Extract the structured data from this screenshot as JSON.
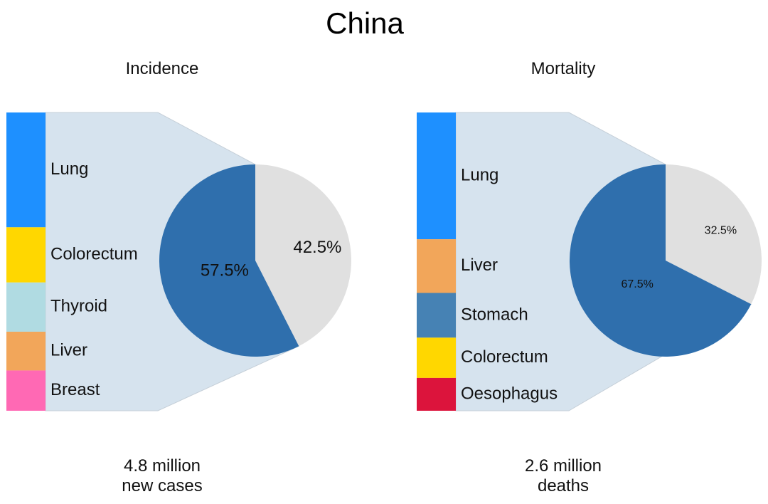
{
  "title": "China",
  "chart_data": [
    {
      "type": "pie",
      "subtitle": "Incidence",
      "caption": [
        "4.8 million",
        "new cases"
      ],
      "pie": {
        "slices": [
          {
            "label": "57.5%",
            "value": 57.5,
            "color": "#2f6fad"
          },
          {
            "label": "42.5%",
            "value": 42.5,
            "color": "#e0e0e0"
          }
        ],
        "breakdown_of_slice": 0
      },
      "bar_segments": [
        {
          "label": "Lung",
          "value": 38.5,
          "color": "#1e90ff"
        },
        {
          "label": "Colorectum",
          "value": 18.5,
          "color": "#ffd700"
        },
        {
          "label": "Thyroid",
          "value": 16.5,
          "color": "#b0dbe2"
        },
        {
          "label": "Liver",
          "value": 13.0,
          "color": "#f2a65a"
        },
        {
          "label": "Breast",
          "value": 13.5,
          "color": "#ff69b4"
        }
      ]
    },
    {
      "type": "pie",
      "subtitle": "Mortality",
      "caption": [
        "2.6 million",
        "deaths"
      ],
      "pie": {
        "slices": [
          {
            "label": "67.5%",
            "value": 67.5,
            "color": "#2f6fad"
          },
          {
            "label": "32.5%",
            "value": 32.5,
            "color": "#e0e0e0"
          }
        ],
        "breakdown_of_slice": 0
      },
      "bar_segments": [
        {
          "label": "Lung",
          "value": 42.5,
          "color": "#1e90ff"
        },
        {
          "label": "Liver",
          "value": 18.0,
          "color": "#f2a65a"
        },
        {
          "label": "Stomach",
          "value": 15.0,
          "color": "#4682b4"
        },
        {
          "label": "Colorectum",
          "value": 13.5,
          "color": "#ffd700"
        },
        {
          "label": "Oesophagus",
          "value": 11.0,
          "color": "#dc143c"
        }
      ]
    }
  ],
  "colors": {
    "connector_fill": "#d6e3ee",
    "connector_stroke": "#c5cfd8",
    "text": "#111111"
  }
}
